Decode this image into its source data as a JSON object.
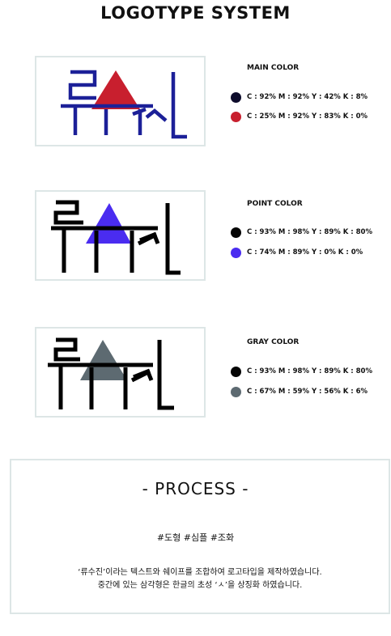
{
  "page_title": "LOGOTYPE SYSTEM",
  "logos": [
    {
      "label": "MAIN COLOR",
      "triangle_color": "#c81f2e",
      "letter_color": "#1c2098",
      "swatches": [
        {
          "color": "#0e0c2c",
          "text": "C : 92% M : 92% Y : 42% K : 8%"
        },
        {
          "color": "#c81f2e",
          "text": "C : 25% M : 92% Y : 83% K : 0%"
        }
      ]
    },
    {
      "label": "POINT COLOR",
      "triangle_color": "#4a2cf0",
      "letter_color": "#000000",
      "swatches": [
        {
          "color": "#050505",
          "text": "C : 93% M : 98% Y : 89% K : 80%"
        },
        {
          "color": "#4a2cf0",
          "text": "C : 74% M : 89% Y : 0% K : 0%"
        }
      ]
    },
    {
      "label": "GRAY COLOR",
      "triangle_color": "#5d6a71",
      "letter_color": "#000000",
      "swatches": [
        {
          "color": "#050505",
          "text": "C : 93% M : 98% Y : 89% K : 80%"
        },
        {
          "color": "#5d6a71",
          "text": "C : 67% M : 59% Y : 56% K : 6%"
        }
      ]
    }
  ],
  "process": {
    "title": "- PROCESS -",
    "tags": "#도형 #심플  #조화",
    "desc_line1": "‘류수진’이라는 텍스트와 쉐이프를 조합하여 로고타입을 제작하였습니다.",
    "desc_line2": "중간에 있는 삼각형은 한글의 초성 ‘ㅅ’을 상징화 하였습니다."
  }
}
